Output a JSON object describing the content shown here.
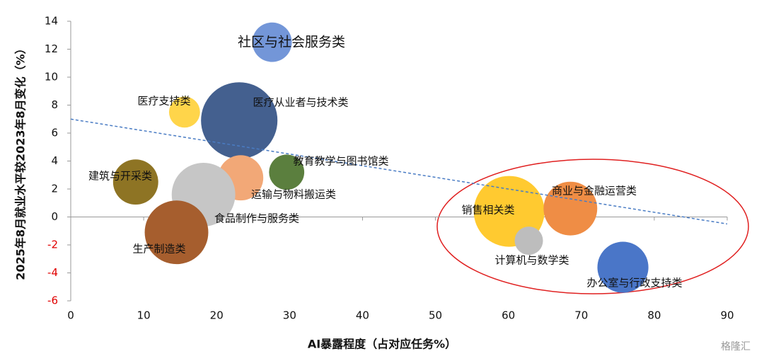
{
  "chart_data": {
    "type": "bubble",
    "xlabel": "AI暴露程度（占对应任务%）",
    "ylabel": "2025年8月就业水平较2023年8月变化（%）",
    "xlim": [
      0,
      90
    ],
    "xticks": [
      0,
      10,
      20,
      30,
      40,
      50,
      60,
      70,
      80,
      90
    ],
    "ylim": [
      -6,
      14
    ],
    "yticks": [
      -6,
      -4,
      -2,
      0,
      2,
      4,
      6,
      8,
      10,
      12,
      14
    ],
    "negative_tick_color": "#e00000",
    "points": [
      {
        "name": "社区与社会服务类",
        "x": 27.6,
        "y": 12.5,
        "size": 78,
        "color": "#7396d8"
      },
      {
        "name": "医疗支持类",
        "x": 15.6,
        "y": 7.5,
        "size": 48,
        "color": "#ffd54a"
      },
      {
        "name": "医疗从业者与技术类",
        "x": 23.1,
        "y": 6.9,
        "size": 292,
        "color": "#44608f"
      },
      {
        "name": "教育教学与图书馆类",
        "x": 29.6,
        "y": 3.2,
        "size": 62,
        "color": "#5b7f3e"
      },
      {
        "name": "运输与物料搬运类",
        "x": 23.3,
        "y": 2.8,
        "size": 102,
        "color": "#f2a877"
      },
      {
        "name": "建筑与开采类",
        "x": 8.9,
        "y": 2.5,
        "size": 102,
        "color": "#8e7424"
      },
      {
        "name": "食品制作与服务类",
        "x": 18.2,
        "y": 1.6,
        "size": 202,
        "color": "#c6c6c6"
      },
      {
        "name": "生产制造类",
        "x": 14.5,
        "y": -1.1,
        "size": 202,
        "color": "#a65e2e"
      },
      {
        "name": "销售相关类",
        "x": 60.1,
        "y": 0.4,
        "size": 250,
        "color": "#ffca30"
      },
      {
        "name": "商业与金融运营类",
        "x": 68.5,
        "y": 0.6,
        "size": 144,
        "color": "#ef8d45"
      },
      {
        "name": "计算机与数学类",
        "x": 62.8,
        "y": -1.7,
        "size": 40,
        "color": "#bdbdbd"
      },
      {
        "name": "办公室与行政支持类",
        "x": 75.7,
        "y": -3.6,
        "size": 130,
        "color": "#4a76c8"
      }
    ],
    "trendline": {
      "x": [
        0,
        90
      ],
      "y": [
        7,
        -0.5
      ],
      "color": "#4a7cc4"
    },
    "watermark": "格隆汇"
  }
}
